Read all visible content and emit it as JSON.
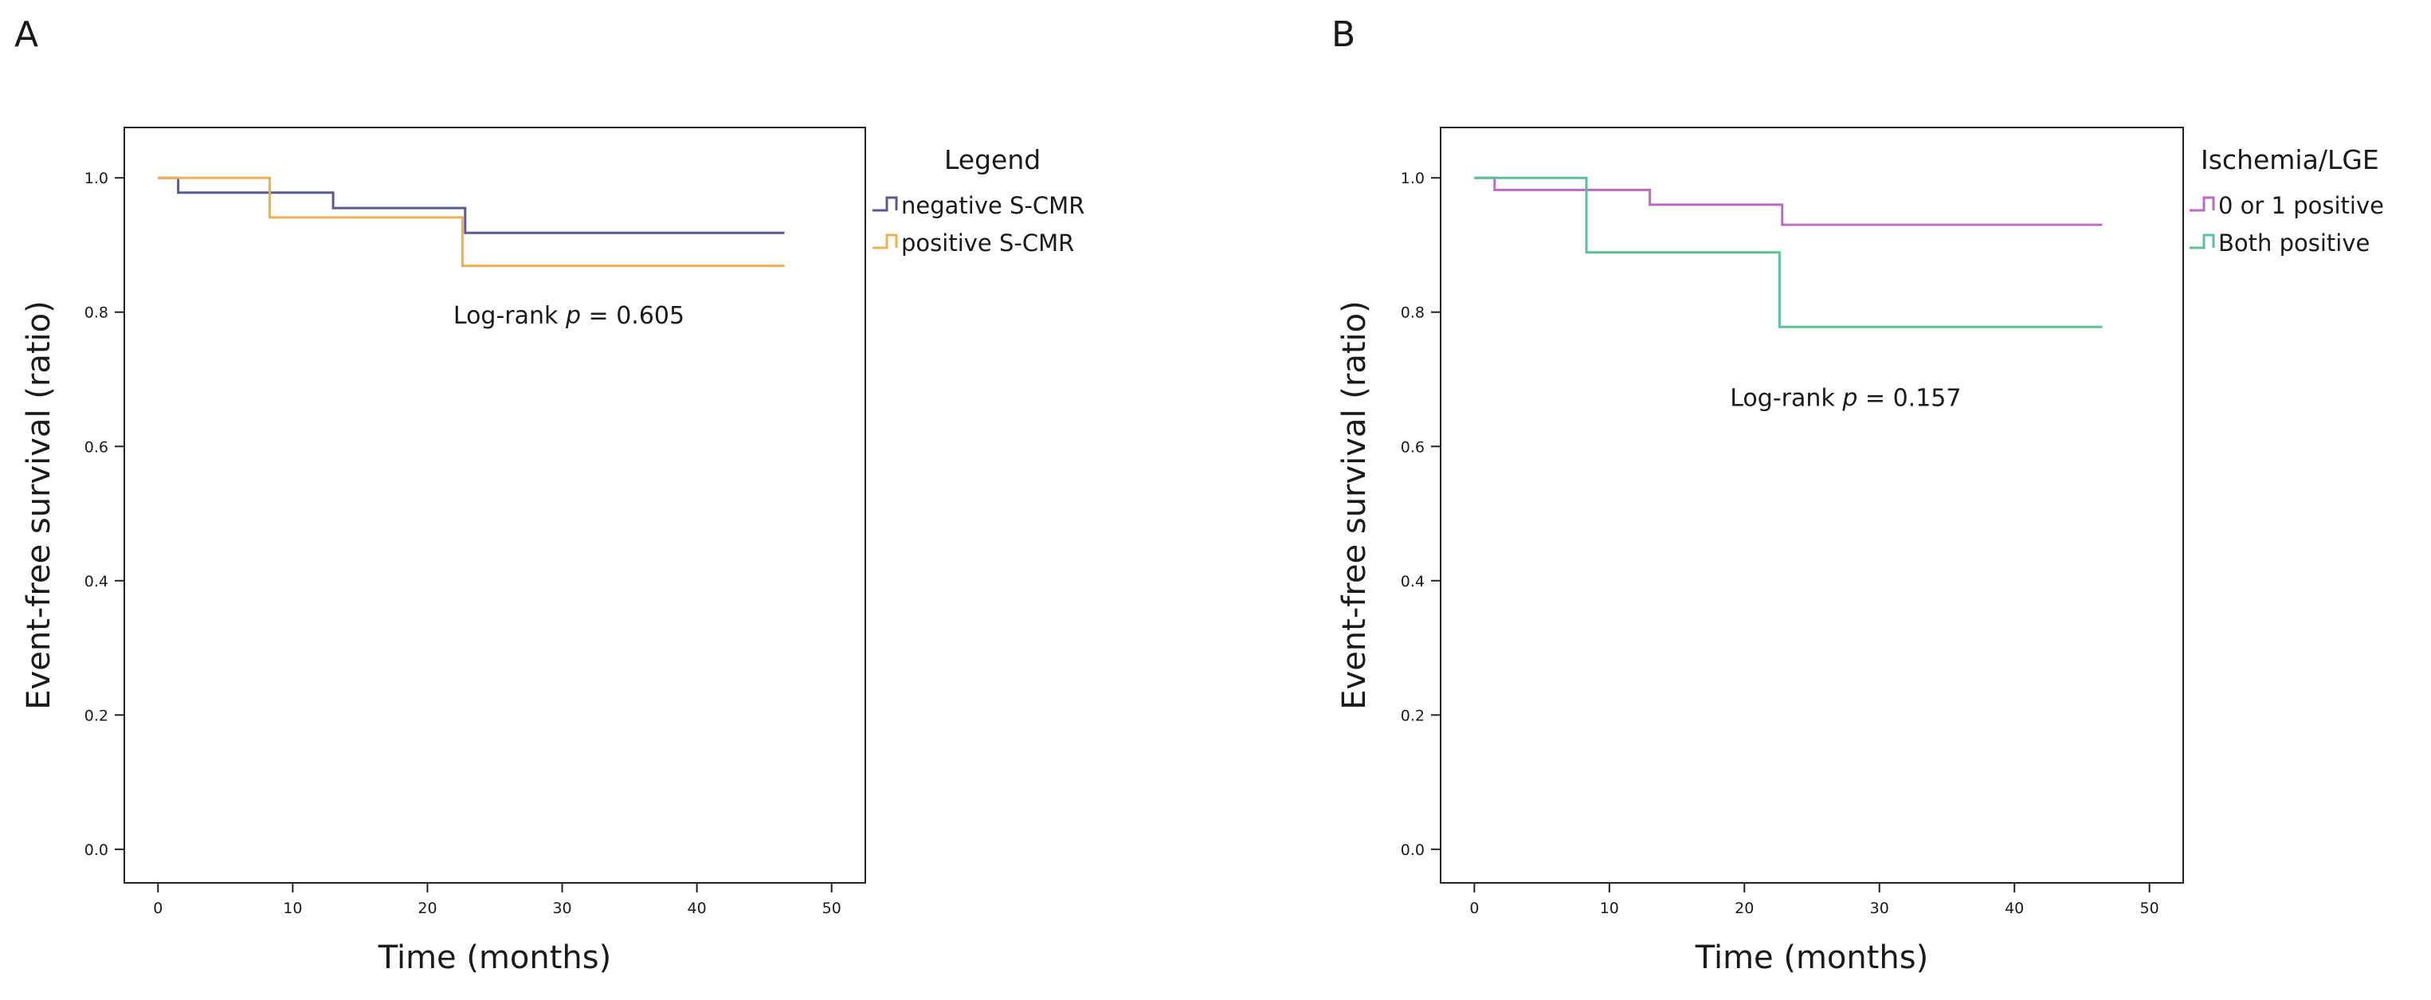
{
  "chart_data": [
    {
      "type": "line",
      "panel": "A",
      "title": "",
      "xlabel": "Time (months)",
      "ylabel": "Event-free survival (ratio)",
      "xlim": [
        -2.5,
        52.5
      ],
      "ylim": [
        -0.05,
        1.075
      ],
      "xticks": [
        0,
        10,
        20,
        30,
        40,
        50
      ],
      "yticks": [
        0.0,
        0.2,
        0.4,
        0.6,
        0.8,
        1.0
      ],
      "xtick_labels": [
        "0",
        "10",
        "20",
        "30",
        "40",
        "50"
      ],
      "ytick_labels": [
        "0.0",
        "0.2",
        "0.4",
        "0.6",
        "0.8",
        "1.0"
      ],
      "grid": false,
      "legend": {
        "title": "Legend",
        "placement": "outside-right-top"
      },
      "annotation": {
        "prefix": "Log-rank ",
        "p_symbol": "p",
        "value": " = 0.605",
        "x": 30.5,
        "y": 0.783
      },
      "series": [
        {
          "name": "negative S-CMR",
          "color": "#5a5a8e",
          "x": [
            0,
            1.5,
            13,
            22.8,
            46.5
          ],
          "y": [
            1.0,
            0.978,
            0.955,
            0.918,
            0.918
          ]
        },
        {
          "name": "positive S-CMR",
          "color": "#f0ae52",
          "x": [
            0,
            8.3,
            22.6,
            46.5
          ],
          "y": [
            1.0,
            0.941,
            0.869,
            0.869
          ]
        }
      ]
    },
    {
      "type": "line",
      "panel": "B",
      "title": "",
      "xlabel": "Time (months)",
      "ylabel": "Event-free survival (ratio)",
      "xlim": [
        -2.5,
        52.5
      ],
      "ylim": [
        -0.05,
        1.075
      ],
      "xticks": [
        0,
        10,
        20,
        30,
        40,
        50
      ],
      "yticks": [
        0.0,
        0.2,
        0.4,
        0.6,
        0.8,
        1.0
      ],
      "xtick_labels": [
        "0",
        "10",
        "20",
        "30",
        "40",
        "50"
      ],
      "ytick_labels": [
        "0.0",
        "0.2",
        "0.4",
        "0.6",
        "0.8",
        "1.0"
      ],
      "grid": false,
      "legend": {
        "title": "Ischemia/LGE",
        "placement": "outside-right-top"
      },
      "annotation": {
        "prefix": "Log-rank ",
        "p_symbol": "p",
        "value": " = 0.157",
        "x": 27.5,
        "y": 0.66
      },
      "series": [
        {
          "name": "0 or 1 positive",
          "color": "#bb6cbf",
          "x": [
            0,
            1.5,
            13,
            22.8,
            46.5
          ],
          "y": [
            1.0,
            0.982,
            0.96,
            0.93,
            0.93
          ]
        },
        {
          "name": "Both positive",
          "color": "#5cbf95",
          "x": [
            0,
            8.3,
            22.6,
            46.5
          ],
          "y": [
            1.0,
            0.889,
            0.778,
            0.778
          ]
        }
      ]
    }
  ]
}
